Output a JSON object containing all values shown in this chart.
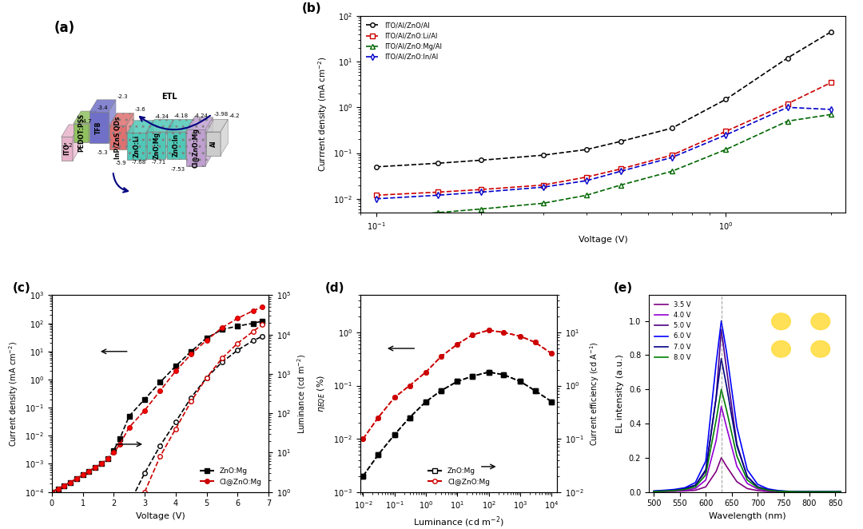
{
  "panel_labels": [
    "(a)",
    "(b)",
    "(c)",
    "(d)",
    "(e)"
  ],
  "panel_b": {
    "title": "",
    "xlabel": "Voltage (V)",
    "ylabel": "Currrent density (mA cm⁻²)",
    "legend": [
      "ITO/Al/ZnO/Al",
      "ITO/Al/ZnO:Li/Al",
      "ITO/Al/ZnO:Mg/Al",
      "ITO/Al/ZnO:In/Al"
    ],
    "colors": [
      "#000000",
      "#cc0000",
      "#006600",
      "#0000cc"
    ],
    "x_ZnO": [
      0.1,
      0.15,
      0.2,
      0.3,
      0.4,
      0.5,
      0.7,
      1.0,
      1.5,
      2.0
    ],
    "y_ZnO": [
      0.05,
      0.06,
      0.07,
      0.09,
      0.12,
      0.18,
      0.35,
      1.5,
      12,
      45
    ],
    "x_Li": [
      0.1,
      0.15,
      0.2,
      0.3,
      0.4,
      0.5,
      0.7,
      1.0,
      1.5,
      2.0
    ],
    "y_Li": [
      0.012,
      0.014,
      0.016,
      0.02,
      0.03,
      0.045,
      0.09,
      0.3,
      1.2,
      3.5
    ],
    "x_Mg": [
      0.1,
      0.15,
      0.2,
      0.3,
      0.4,
      0.5,
      0.7,
      1.0,
      1.5,
      2.0
    ],
    "y_Mg": [
      0.004,
      0.005,
      0.006,
      0.008,
      0.012,
      0.02,
      0.04,
      0.12,
      0.5,
      0.7
    ],
    "x_In": [
      0.1,
      0.15,
      0.2,
      0.3,
      0.4,
      0.5,
      0.7,
      1.0,
      1.5,
      2.0
    ],
    "y_In": [
      0.01,
      0.012,
      0.014,
      0.018,
      0.025,
      0.04,
      0.08,
      0.25,
      1.0,
      0.9
    ],
    "xlim": [
      0.09,
      2.2
    ],
    "ylim": [
      0.005,
      100
    ]
  },
  "panel_c": {
    "xlabel": "Voltage (V)",
    "ylabel_left": "Current density (mA cm⁻²)",
    "ylabel_right": "Luminance (cd m⁻²)",
    "legend": [
      "ZnO:Mg",
      "Cl@ZnO:Mg"
    ],
    "colors": [
      "#000000",
      "#cc0000"
    ],
    "x_v": [
      0.0,
      0.2,
      0.4,
      0.6,
      0.8,
      1.0,
      1.2,
      1.4,
      1.6,
      1.8,
      2.0,
      2.2,
      2.5,
      3.0,
      3.5,
      4.0,
      4.5,
      5.0,
      5.5,
      6.0,
      6.5,
      6.8
    ],
    "y_j_zno": [
      0.0001,
      0.00013,
      0.00017,
      0.00022,
      0.0003,
      0.0004,
      0.00055,
      0.00075,
      0.001,
      0.0015,
      0.003,
      0.008,
      0.05,
      0.2,
      0.8,
      3.0,
      10,
      30,
      60,
      80,
      100,
      120
    ],
    "y_j_cl": [
      0.0001,
      0.00013,
      0.00017,
      0.00022,
      0.0003,
      0.0004,
      0.00055,
      0.00075,
      0.001,
      0.0015,
      0.0025,
      0.005,
      0.02,
      0.08,
      0.4,
      2.0,
      8,
      25,
      70,
      150,
      280,
      380
    ],
    "y_l_zno": [
      0,
      0,
      0,
      0,
      0,
      0,
      0,
      0,
      0,
      0,
      0,
      0,
      0.5,
      3,
      15,
      60,
      250,
      800,
      2000,
      4000,
      7000,
      9000
    ],
    "y_l_cl": [
      0,
      0,
      0,
      0,
      0,
      0,
      0,
      0,
      0,
      0,
      0,
      0,
      0,
      1,
      8,
      40,
      200,
      800,
      2500,
      6000,
      12000,
      18000
    ],
    "xlim": [
      0,
      7
    ],
    "ylim_j": [
      0.0001,
      1000
    ],
    "ylim_l": [
      1,
      100000
    ]
  },
  "panel_d": {
    "xlabel": "Luminance (cd m⁻²)",
    "ylabel_left": "η_EQE (%)",
    "ylabel_right": "Current efficiency (cd A⁻¹)",
    "legend": [
      "ZnO:Mg",
      "Cl@ZnO:Mg"
    ],
    "colors": [
      "#000000",
      "#cc0000"
    ],
    "x_lum": [
      0.01,
      0.03,
      0.1,
      0.3,
      1,
      3,
      10,
      30,
      100,
      300,
      1000,
      3000,
      10000
    ],
    "y_eqe_zno": [
      0.002,
      0.005,
      0.012,
      0.025,
      0.05,
      0.08,
      0.12,
      0.15,
      0.18,
      0.16,
      0.12,
      0.08,
      0.05
    ],
    "y_eqe_cl": [
      0.01,
      0.025,
      0.06,
      0.1,
      0.18,
      0.35,
      0.6,
      0.9,
      1.1,
      1.0,
      0.85,
      0.65,
      0.4
    ],
    "y_ce_zno": [
      0.02,
      0.05,
      0.12,
      0.25,
      0.5,
      0.8,
      1.2,
      1.5,
      1.8,
      1.6,
      1.2,
      0.8,
      0.5
    ],
    "y_ce_cl": [
      0.1,
      0.25,
      0.6,
      1.0,
      1.8,
      3.5,
      6,
      9,
      11,
      10,
      8.5,
      6.5,
      4
    ],
    "xlim": [
      0.008,
      15000
    ],
    "ylim_eqe": [
      0.001,
      5
    ],
    "ylim_ce": [
      0.01,
      50
    ]
  },
  "panel_e": {
    "xlabel": "Wavelength (nm)",
    "ylabel": "EL intensity (a.u.)",
    "legend": [
      "3.5 V",
      "4.0 V",
      "5.0 V",
      "6.0 V",
      "7.0 V",
      "8.0 V"
    ],
    "colors": [
      "#8B008B",
      "#9400D3",
      "#4B0082",
      "#0000FF",
      "#00008B",
      "#006400"
    ],
    "peak_wl": 630,
    "x_wl": [
      500,
      520,
      540,
      560,
      580,
      600,
      620,
      630,
      640,
      660,
      680,
      700,
      720,
      740,
      760,
      780,
      800,
      820,
      840,
      860
    ],
    "intensities_35": [
      0.002,
      0.003,
      0.004,
      0.006,
      0.01,
      0.03,
      0.12,
      0.2,
      0.15,
      0.06,
      0.02,
      0.008,
      0.003,
      0.002,
      0.001,
      0.001,
      0.001,
      0.001,
      0.001,
      0.001
    ],
    "intensities_40": [
      0.003,
      0.004,
      0.006,
      0.01,
      0.02,
      0.07,
      0.3,
      0.5,
      0.38,
      0.15,
      0.05,
      0.018,
      0.007,
      0.003,
      0.002,
      0.001,
      0.001,
      0.001,
      0.001,
      0.001
    ],
    "intensities_50": [
      0.005,
      0.007,
      0.01,
      0.02,
      0.04,
      0.12,
      0.55,
      0.95,
      0.72,
      0.28,
      0.09,
      0.03,
      0.012,
      0.005,
      0.003,
      0.002,
      0.001,
      0.001,
      0.001,
      0.001
    ],
    "intensities_60": [
      0.006,
      0.01,
      0.015,
      0.025,
      0.055,
      0.18,
      0.75,
      1.0,
      0.82,
      0.38,
      0.13,
      0.045,
      0.018,
      0.008,
      0.004,
      0.002,
      0.001,
      0.001,
      0.001,
      0.001
    ],
    "intensities_70": [
      0.004,
      0.006,
      0.01,
      0.018,
      0.04,
      0.13,
      0.55,
      0.78,
      0.62,
      0.27,
      0.09,
      0.03,
      0.012,
      0.005,
      0.003,
      0.001,
      0.001,
      0.001,
      0.001,
      0.001
    ],
    "intensities_80": [
      0.003,
      0.005,
      0.008,
      0.015,
      0.03,
      0.1,
      0.42,
      0.6,
      0.48,
      0.21,
      0.07,
      0.025,
      0.01,
      0.004,
      0.002,
      0.001,
      0.001,
      0.001,
      0.001,
      0.001
    ],
    "xlim": [
      490,
      870
    ],
    "ylim": [
      0,
      1.15
    ]
  },
  "background_color": "#ffffff",
  "panel_a_image_placeholder": true
}
